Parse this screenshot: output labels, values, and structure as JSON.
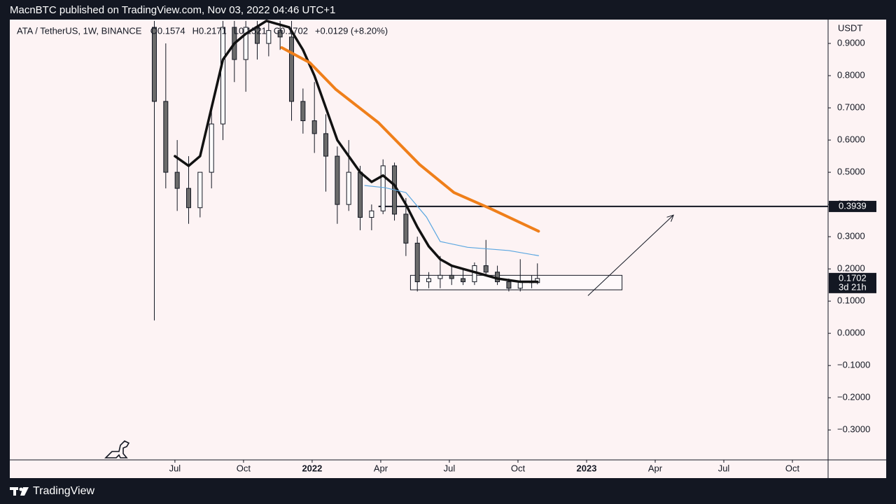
{
  "header": {
    "publisher": "MacnBTC published on TradingView.com, Nov 03, 2022 04:46 UTC+1"
  },
  "footer": {
    "brand": "TradingView"
  },
  "chart_data": {
    "type": "candlestick",
    "legend": {
      "symbol": "ATA / TetherUS, 1W, BINANCE",
      "open": "O0.1574",
      "high": "H0.2171",
      "low": "L0.1521",
      "close": "C0.1702",
      "change": "+0.0129 (+8.20%)"
    },
    "y_unit": "USDT",
    "x": [
      5.1,
      5.6,
      6.1,
      6.6,
      7.1,
      7.6,
      8.1,
      8.6,
      9.1,
      9.6,
      10.1,
      10.6,
      11.1,
      11.6,
      12.1,
      12.6,
      13.1,
      13.6,
      14.1,
      14.6,
      15.1,
      15.6,
      16.1,
      16.6,
      17.1,
      17.6,
      18.1,
      18.6,
      19.1,
      19.6,
      20.1,
      20.6,
      21.1,
      21.6,
      21.85
    ],
    "open": [
      0.95,
      0.72,
      0.5,
      0.45,
      0.39,
      0.5,
      0.65,
      0.95,
      0.85,
      0.95,
      0.9,
      0.94,
      0.92,
      0.72,
      0.66,
      0.62,
      0.55,
      0.4,
      0.5,
      0.36,
      0.38,
      0.52,
      0.37,
      0.28,
      0.16,
      0.17,
      0.18,
      0.17,
      0.16,
      0.21,
      0.19,
      0.16,
      0.14,
      0.16,
      0.1574
    ],
    "high": [
      0.97,
      0.9,
      0.6,
      0.55,
      0.5,
      0.7,
      0.97,
      0.97,
      0.97,
      0.97,
      0.97,
      0.97,
      0.97,
      0.76,
      0.78,
      0.68,
      0.58,
      0.6,
      0.52,
      0.4,
      0.54,
      0.53,
      0.42,
      0.3,
      0.19,
      0.24,
      0.21,
      0.2,
      0.22,
      0.29,
      0.21,
      0.17,
      0.23,
      0.18,
      0.2171
    ],
    "low": [
      0.04,
      0.45,
      0.38,
      0.34,
      0.36,
      0.45,
      0.6,
      0.78,
      0.75,
      0.85,
      0.86,
      0.88,
      0.66,
      0.62,
      0.56,
      0.44,
      0.34,
      0.38,
      0.32,
      0.32,
      0.37,
      0.35,
      0.24,
      0.13,
      0.14,
      0.14,
      0.15,
      0.15,
      0.15,
      0.18,
      0.15,
      0.13,
      0.13,
      0.14,
      0.1521
    ],
    "close": [
      0.72,
      0.5,
      0.45,
      0.39,
      0.5,
      0.65,
      0.95,
      0.85,
      0.95,
      0.9,
      0.94,
      0.92,
      0.72,
      0.66,
      0.62,
      0.55,
      0.4,
      0.5,
      0.36,
      0.38,
      0.52,
      0.37,
      0.28,
      0.16,
      0.17,
      0.18,
      0.17,
      0.16,
      0.21,
      0.19,
      0.16,
      0.14,
      0.16,
      0.1573,
      0.1702
    ],
    "series": [
      {
        "color": "#111111",
        "width": 3.5,
        "x": [
          6.0,
          6.6,
          7.1,
          7.6,
          8.1,
          8.6,
          9.1,
          10.0,
          11.0,
          11.6,
          12.1,
          12.6,
          13.1,
          13.6,
          14.1,
          14.6,
          15.1,
          15.6,
          16.1,
          16.6,
          17.1,
          17.6,
          18.1,
          18.6,
          19.1,
          19.6,
          20.1,
          20.6,
          21.1,
          21.85
        ],
        "values": [
          0.55,
          0.52,
          0.55,
          0.7,
          0.85,
          0.9,
          0.93,
          0.97,
          0.95,
          0.88,
          0.8,
          0.7,
          0.6,
          0.55,
          0.5,
          0.47,
          0.49,
          0.46,
          0.4,
          0.33,
          0.27,
          0.23,
          0.21,
          0.2,
          0.19,
          0.18,
          0.17,
          0.165,
          0.16,
          0.16
        ]
      },
      {
        "color": "#ef7f1a",
        "width": 4,
        "x": [
          10.67,
          11.9,
          13.04,
          14.9,
          16.7,
          18.2,
          19.8,
          21.9
        ],
        "values": [
          0.887,
          0.84,
          0.757,
          0.654,
          0.524,
          0.437,
          0.387,
          0.317
        ]
      },
      {
        "color": "#5aa6e0",
        "width": 1.2,
        "x": [
          14.3,
          15.2,
          16.1,
          17.0,
          17.6,
          18.8,
          20.6,
          21.9
        ],
        "values": [
          0.459,
          0.452,
          0.437,
          0.361,
          0.285,
          0.267,
          0.257,
          0.241
        ]
      }
    ],
    "hline": {
      "value": 0.3939,
      "label": "0.3939",
      "x_start": 14.9
    },
    "last_price": {
      "value": 0.1702,
      "label": "0.1702",
      "countdown": "3d 21h"
    },
    "box": {
      "x": [
        16.3,
        25.55
      ],
      "y": [
        0.135,
        0.18
      ]
    },
    "arrow": {
      "x": [
        24.06,
        27.8
      ],
      "y": [
        0.117,
        0.367
      ]
    },
    "xlim": [
      -1.22,
      34.56
    ],
    "ylim": [
      -0.393,
      0.974
    ],
    "xticks": [
      {
        "value": 6,
        "label": "Jul"
      },
      {
        "value": 9,
        "label": "Oct"
      },
      {
        "value": 12,
        "label": "2022"
      },
      {
        "value": 15,
        "label": "Apr"
      },
      {
        "value": 18,
        "label": "Jul"
      },
      {
        "value": 21,
        "label": "Oct"
      },
      {
        "value": 24,
        "label": "2023"
      },
      {
        "value": 27,
        "label": "Apr"
      },
      {
        "value": 30,
        "label": "Jul"
      },
      {
        "value": 33,
        "label": "Oct"
      }
    ],
    "yticks": [
      {
        "value": 0.9,
        "label": "0.9000"
      },
      {
        "value": 0.8,
        "label": "0.8000"
      },
      {
        "value": 0.7,
        "label": "0.7000"
      },
      {
        "value": 0.6,
        "label": "0.6000"
      },
      {
        "value": 0.5,
        "label": "0.5000"
      },
      {
        "value": 0.4,
        "label": "0.4000"
      },
      {
        "value": 0.3,
        "label": "0.3000"
      },
      {
        "value": 0.2,
        "label": "0.2000"
      },
      {
        "value": 0.1,
        "label": "0.1000"
      },
      {
        "value": 0,
        "label": "0.0000"
      },
      {
        "value": -0.1,
        "label": "−0.1000"
      },
      {
        "value": -0.2,
        "label": "−0.2000"
      },
      {
        "value": -0.3,
        "label": "−0.3000"
      }
    ]
  }
}
